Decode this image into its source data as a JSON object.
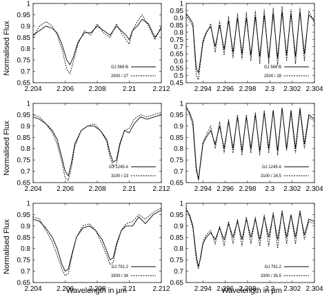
{
  "labels": {
    "ylabel": "Normalised Flux",
    "xlabel": "Wavelength in μm"
  },
  "colors": {
    "line": "#000000",
    "frame": "#000000"
  },
  "chart_data": [
    {
      "type": "line",
      "row": 1,
      "column": 1,
      "xlim": [
        2.204,
        2.212
      ],
      "ylim": [
        0.65,
        1.0
      ],
      "xticks": [
        "2.204",
        "2.206",
        "2.208",
        "2.21",
        "2.212"
      ],
      "yticks": [
        "0.65",
        "0.7",
        "0.75",
        "0.8",
        "0.85",
        "0.9",
        "0.95",
        "1"
      ],
      "series": [
        {
          "name": "GJ 569 B",
          "style": "solid",
          "x": [
            2.204,
            2.2044,
            2.2048,
            2.2052,
            2.2055,
            2.2058,
            2.2061,
            2.2063,
            2.2065,
            2.2068,
            2.2072,
            2.2076,
            2.208,
            2.2084,
            2.2088,
            2.2092,
            2.2095,
            2.2098,
            2.21,
            2.2102,
            2.2105,
            2.2108,
            2.2112,
            2.2116,
            2.212
          ],
          "y": [
            0.86,
            0.88,
            0.9,
            0.89,
            0.87,
            0.82,
            0.75,
            0.73,
            0.76,
            0.83,
            0.87,
            0.87,
            0.9,
            0.88,
            0.86,
            0.9,
            0.88,
            0.86,
            0.84,
            0.88,
            0.9,
            0.93,
            0.91,
            0.85,
            0.89
          ]
        },
        {
          "name": "2500 / 27",
          "style": "dashed",
          "x": [
            2.204,
            2.2044,
            2.2048,
            2.2052,
            2.2055,
            2.2058,
            2.2061,
            2.2063,
            2.2065,
            2.2068,
            2.2072,
            2.2076,
            2.208,
            2.2084,
            2.2088,
            2.2092,
            2.2095,
            2.2098,
            2.21,
            2.2102,
            2.2105,
            2.2108,
            2.2112,
            2.2116,
            2.212
          ],
          "y": [
            0.85,
            0.9,
            0.92,
            0.9,
            0.86,
            0.8,
            0.71,
            0.69,
            0.74,
            0.82,
            0.88,
            0.86,
            0.91,
            0.87,
            0.85,
            0.91,
            0.87,
            0.84,
            0.82,
            0.88,
            0.92,
            0.95,
            0.9,
            0.84,
            0.9
          ]
        }
      ]
    },
    {
      "type": "line",
      "row": 1,
      "column": 2,
      "xlim": [
        2.2925,
        2.304
      ],
      "ylim": [
        0.45,
        1.0
      ],
      "xticks": [
        "2.294",
        "2.296",
        "2.298",
        "2.3",
        "2.302",
        "2.304"
      ],
      "yticks": [
        "0.45",
        "0.5",
        "0.55",
        "0.6",
        "0.65",
        "0.7",
        "0.75",
        "0.8",
        "0.85",
        "0.9",
        "0.95",
        "1"
      ],
      "series": [
        {
          "name": "GJ 569 B",
          "style": "solid",
          "x": [
            2.2925,
            2.2928,
            2.2931,
            2.2934,
            2.2936,
            2.2938,
            2.294,
            2.2943,
            2.2947,
            2.2951,
            2.2955,
            2.2959,
            2.2963,
            2.2967,
            2.2971,
            2.2975,
            2.2979,
            2.2983,
            2.2987,
            2.2991,
            2.2995,
            2.2999,
            2.3003,
            2.3007,
            2.3011,
            2.3015,
            2.3019,
            2.3023,
            2.3027,
            2.3031,
            2.3035,
            2.304
          ],
          "y": [
            0.93,
            0.9,
            0.86,
            0.55,
            0.52,
            0.62,
            0.74,
            0.8,
            0.84,
            0.7,
            0.85,
            0.68,
            0.88,
            0.66,
            0.9,
            0.65,
            0.9,
            0.64,
            0.91,
            0.63,
            0.92,
            0.62,
            0.93,
            0.62,
            0.94,
            0.64,
            0.93,
            0.63,
            0.94,
            0.65,
            0.92,
            0.88
          ]
        },
        {
          "name": "2500 / 28",
          "style": "dashed",
          "x": [
            2.2925,
            2.2928,
            2.2931,
            2.2934,
            2.2936,
            2.2938,
            2.294,
            2.2943,
            2.2947,
            2.2951,
            2.2955,
            2.2959,
            2.2963,
            2.2967,
            2.2971,
            2.2975,
            2.2979,
            2.2983,
            2.2987,
            2.2991,
            2.2995,
            2.2999,
            2.3003,
            2.3007,
            2.3011,
            2.3015,
            2.3019,
            2.3023,
            2.3027,
            2.3031,
            2.3035,
            2.304
          ],
          "y": [
            0.92,
            0.88,
            0.84,
            0.5,
            0.47,
            0.6,
            0.72,
            0.79,
            0.86,
            0.66,
            0.88,
            0.64,
            0.91,
            0.62,
            0.93,
            0.61,
            0.94,
            0.6,
            0.95,
            0.58,
            0.96,
            0.58,
            0.97,
            0.57,
            0.98,
            0.6,
            0.96,
            0.58,
            0.97,
            0.6,
            0.95,
            0.86
          ]
        }
      ]
    },
    {
      "type": "line",
      "row": 2,
      "column": 1,
      "xlim": [
        2.204,
        2.212
      ],
      "ylim": [
        0.65,
        1.0
      ],
      "xticks": [
        "2.204",
        "2.206",
        "2.208",
        "2.21",
        "2.212"
      ],
      "yticks": [
        "0.65",
        "0.7",
        "0.75",
        "0.8",
        "0.85",
        "0.9",
        "0.95",
        "1"
      ],
      "series": [
        {
          "name": "GJ 1245 A",
          "style": "solid",
          "x": [
            2.204,
            2.2044,
            2.2048,
            2.2052,
            2.2055,
            2.2058,
            2.206,
            2.2062,
            2.2064,
            2.2066,
            2.207,
            2.2074,
            2.2078,
            2.2082,
            2.2086,
            2.2088,
            2.209,
            2.2092,
            2.2094,
            2.2097,
            2.21,
            2.2103,
            2.2107,
            2.2111,
            2.212
          ],
          "y": [
            0.94,
            0.93,
            0.91,
            0.88,
            0.84,
            0.76,
            0.7,
            0.68,
            0.74,
            0.82,
            0.88,
            0.9,
            0.9,
            0.88,
            0.84,
            0.78,
            0.74,
            0.75,
            0.82,
            0.88,
            0.87,
            0.91,
            0.94,
            0.93,
            0.95
          ]
        },
        {
          "name": "3100 / 23",
          "style": "dashed",
          "x": [
            2.204,
            2.2044,
            2.2048,
            2.2052,
            2.2055,
            2.2058,
            2.206,
            2.2062,
            2.2064,
            2.2066,
            2.207,
            2.2074,
            2.2078,
            2.2082,
            2.2086,
            2.2088,
            2.209,
            2.2092,
            2.2094,
            2.2097,
            2.21,
            2.2103,
            2.2107,
            2.2111,
            2.212
          ],
          "y": [
            0.95,
            0.94,
            0.91,
            0.87,
            0.82,
            0.74,
            0.67,
            0.66,
            0.72,
            0.81,
            0.88,
            0.9,
            0.91,
            0.88,
            0.83,
            0.76,
            0.72,
            0.73,
            0.81,
            0.88,
            0.89,
            0.93,
            0.95,
            0.94,
            0.96
          ]
        }
      ]
    },
    {
      "type": "line",
      "row": 2,
      "column": 2,
      "xlim": [
        2.2925,
        2.304
      ],
      "ylim": [
        0.65,
        1.0
      ],
      "xticks": [
        "2.294",
        "2.296",
        "2.298",
        "2.3",
        "2.302",
        "2.304"
      ],
      "yticks": [
        "0.65",
        "0.7",
        "0.75",
        "0.8",
        "0.85",
        "0.9",
        "0.95",
        "1"
      ],
      "series": [
        {
          "name": "GJ 1245 A",
          "style": "solid",
          "x": [
            2.2925,
            2.2928,
            2.2931,
            2.2934,
            2.2936,
            2.2938,
            2.294,
            2.2943,
            2.2947,
            2.2951,
            2.2955,
            2.2959,
            2.2963,
            2.2967,
            2.2971,
            2.2975,
            2.2979,
            2.2983,
            2.2987,
            2.2991,
            2.2995,
            2.2999,
            2.3003,
            2.3007,
            2.3011,
            2.3015,
            2.3019,
            2.3023,
            2.3027,
            2.3031,
            2.3035,
            2.304
          ],
          "y": [
            0.98,
            0.96,
            0.92,
            0.72,
            0.66,
            0.74,
            0.82,
            0.85,
            0.88,
            0.82,
            0.9,
            0.8,
            0.92,
            0.8,
            0.94,
            0.79,
            0.94,
            0.8,
            0.95,
            0.79,
            0.96,
            0.8,
            0.97,
            0.79,
            0.98,
            0.8,
            0.97,
            0.8,
            0.98,
            0.82,
            0.95,
            0.93
          ]
        },
        {
          "name": "3100 / 24.5",
          "style": "dashed",
          "x": [
            2.2925,
            2.2928,
            2.2931,
            2.2934,
            2.2936,
            2.2938,
            2.294,
            2.2943,
            2.2947,
            2.2951,
            2.2955,
            2.2959,
            2.2963,
            2.2967,
            2.2971,
            2.2975,
            2.2979,
            2.2983,
            2.2987,
            2.2991,
            2.2995,
            2.2999,
            2.3003,
            2.3007,
            2.3011,
            2.3015,
            2.3019,
            2.3023,
            2.3027,
            2.3031,
            2.3035,
            2.304
          ],
          "y": [
            0.99,
            0.95,
            0.9,
            0.7,
            0.67,
            0.75,
            0.83,
            0.86,
            0.9,
            0.8,
            0.92,
            0.78,
            0.93,
            0.78,
            0.95,
            0.77,
            0.95,
            0.78,
            0.96,
            0.77,
            0.97,
            0.78,
            0.97,
            0.77,
            0.98,
            0.79,
            0.96,
            0.78,
            0.97,
            0.8,
            0.94,
            0.92
          ]
        }
      ]
    },
    {
      "type": "line",
      "row": 3,
      "column": 1,
      "xlim": [
        2.204,
        2.212
      ],
      "ylim": [
        0.65,
        1.0
      ],
      "xticks": [
        "2.204",
        "2.206",
        "2.208",
        "2.21",
        "2.212"
      ],
      "yticks": [
        "0.65",
        "0.7",
        "0.75",
        "0.8",
        "0.85",
        "0.9",
        "0.95",
        "1"
      ],
      "series": [
        {
          "name": "GJ 791.2",
          "style": "solid",
          "x": [
            2.204,
            2.2044,
            2.2048,
            2.2052,
            2.2055,
            2.2058,
            2.206,
            2.2062,
            2.2064,
            2.2067,
            2.2071,
            2.2075,
            2.2079,
            2.2083,
            2.2086,
            2.2088,
            2.209,
            2.2092,
            2.2095,
            2.2098,
            2.2102,
            2.2106,
            2.211,
            2.2115,
            2.212
          ],
          "y": [
            0.93,
            0.92,
            0.89,
            0.85,
            0.8,
            0.73,
            0.7,
            0.71,
            0.77,
            0.85,
            0.89,
            0.9,
            0.88,
            0.84,
            0.79,
            0.75,
            0.76,
            0.82,
            0.88,
            0.9,
            0.9,
            0.94,
            0.91,
            0.95,
            0.97
          ]
        },
        {
          "name": "3300 / 34",
          "style": "dashed",
          "x": [
            2.204,
            2.2044,
            2.2048,
            2.2052,
            2.2055,
            2.2058,
            2.206,
            2.2062,
            2.2064,
            2.2067,
            2.2071,
            2.2075,
            2.2079,
            2.2083,
            2.2086,
            2.2088,
            2.209,
            2.2092,
            2.2095,
            2.2098,
            2.2102,
            2.2106,
            2.211,
            2.2115,
            2.212
          ],
          "y": [
            0.94,
            0.93,
            0.88,
            0.83,
            0.77,
            0.71,
            0.68,
            0.69,
            0.76,
            0.85,
            0.9,
            0.91,
            0.88,
            0.82,
            0.77,
            0.73,
            0.74,
            0.81,
            0.88,
            0.91,
            0.92,
            0.95,
            0.93,
            0.96,
            0.98
          ]
        }
      ]
    },
    {
      "type": "line",
      "row": 3,
      "column": 2,
      "xlim": [
        2.2925,
        2.304
      ],
      "ylim": [
        0.65,
        1.0
      ],
      "xticks": [
        "2.294",
        "2.296",
        "2.298",
        "2.3",
        "2.302",
        "2.304"
      ],
      "yticks": [
        "0.65",
        "0.7",
        "0.75",
        "0.8",
        "0.85",
        "0.9",
        "0.95",
        "1"
      ],
      "series": [
        {
          "name": "GJ 791.2",
          "style": "solid",
          "x": [
            2.2925,
            2.2928,
            2.2931,
            2.2934,
            2.2936,
            2.2938,
            2.294,
            2.2943,
            2.2947,
            2.2951,
            2.2955,
            2.2959,
            2.2963,
            2.2967,
            2.2971,
            2.2975,
            2.2979,
            2.2983,
            2.2987,
            2.2991,
            2.2995,
            2.2999,
            2.3003,
            2.3007,
            2.3011,
            2.3015,
            2.3019,
            2.3023,
            2.3027,
            2.3031,
            2.3035,
            2.304
          ],
          "y": [
            0.97,
            0.95,
            0.9,
            0.77,
            0.72,
            0.76,
            0.82,
            0.85,
            0.87,
            0.84,
            0.89,
            0.84,
            0.91,
            0.85,
            0.92,
            0.84,
            0.93,
            0.85,
            0.93,
            0.84,
            0.94,
            0.85,
            0.95,
            0.84,
            0.96,
            0.85,
            0.95,
            0.85,
            0.96,
            0.86,
            0.93,
            0.92
          ]
        },
        {
          "name": "3300 / 35.5",
          "style": "dashed",
          "x": [
            2.2925,
            2.2928,
            2.2931,
            2.2934,
            2.2936,
            2.2938,
            2.294,
            2.2943,
            2.2947,
            2.2951,
            2.2955,
            2.2959,
            2.2963,
            2.2967,
            2.2971,
            2.2975,
            2.2979,
            2.2983,
            2.2987,
            2.2991,
            2.2995,
            2.2999,
            2.3003,
            2.3007,
            2.3011,
            2.3015,
            2.3019,
            2.3023,
            2.3027,
            2.3031,
            2.3035,
            2.304
          ],
          "y": [
            0.98,
            0.94,
            0.89,
            0.75,
            0.71,
            0.77,
            0.83,
            0.86,
            0.88,
            0.82,
            0.9,
            0.81,
            0.92,
            0.82,
            0.93,
            0.81,
            0.94,
            0.82,
            0.94,
            0.81,
            0.95,
            0.81,
            0.96,
            0.8,
            0.97,
            0.82,
            0.95,
            0.82,
            0.97,
            0.84,
            0.92,
            0.91
          ]
        }
      ]
    }
  ]
}
